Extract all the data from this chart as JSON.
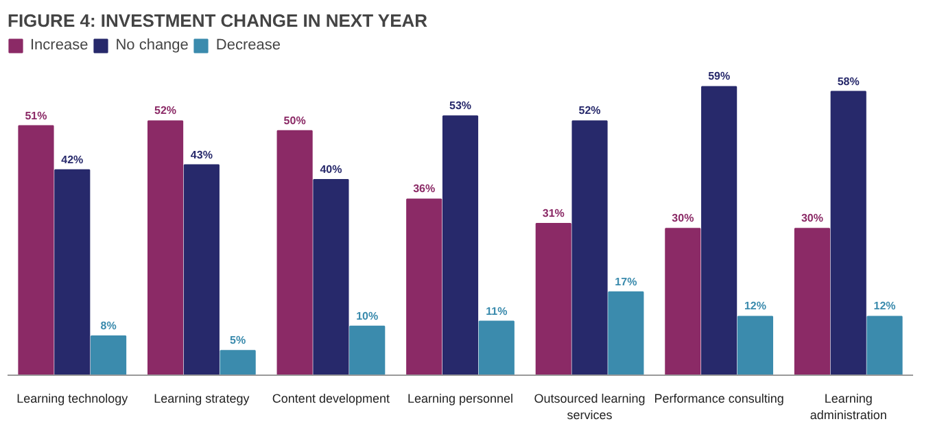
{
  "chart_data": {
    "type": "bar",
    "title": "FIGURE 4: INVESTMENT CHANGE IN NEXT YEAR",
    "categories": [
      "Learning technology",
      "Learning strategy",
      "Content development",
      "Learning personnel",
      "Outsourced learning services",
      "Performance consulting",
      "Learning administration"
    ],
    "series": [
      {
        "name": "Increase",
        "color": "#8b2a66",
        "values": [
          51,
          52,
          50,
          36,
          31,
          30,
          30
        ],
        "value_labels": [
          "51%",
          "52%",
          "50%",
          "36%",
          "31%",
          "30%",
          "30%"
        ]
      },
      {
        "name": "No change",
        "color": "#27296b",
        "values": [
          42,
          43,
          40,
          53,
          52,
          59,
          58
        ],
        "value_labels": [
          "42%",
          "43%",
          "40%",
          "53%",
          "52%",
          "59%",
          "58%"
        ]
      },
      {
        "name": "Decrease",
        "color": "#3b8bad",
        "values": [
          8,
          5,
          10,
          11,
          17,
          12,
          12
        ],
        "value_labels": [
          "8%",
          "5%",
          "10%",
          "11%",
          "17%",
          "12%",
          "12%"
        ]
      }
    ],
    "legend": "top left"
  }
}
